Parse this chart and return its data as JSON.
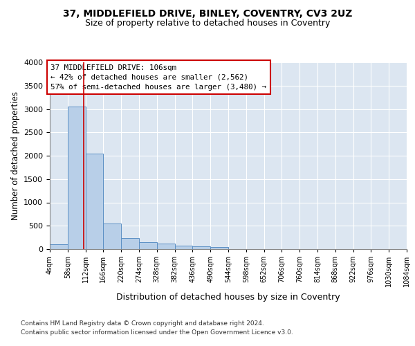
{
  "title1": "37, MIDDLEFIELD DRIVE, BINLEY, COVENTRY, CV3 2UZ",
  "title2": "Size of property relative to detached houses in Coventry",
  "xlabel": "Distribution of detached houses by size in Coventry",
  "ylabel": "Number of detached properties",
  "annotation_line1": "37 MIDDLEFIELD DRIVE: 106sqm",
  "annotation_line2": "← 42% of detached houses are smaller (2,562)",
  "annotation_line3": "57% of semi-detached houses are larger (3,480) →",
  "property_size": 106,
  "bin_edges": [
    4,
    58,
    112,
    166,
    220,
    274,
    328,
    382,
    436,
    490,
    544,
    598,
    652,
    706,
    760,
    814,
    868,
    922,
    976,
    1030,
    1084
  ],
  "bar_heights": [
    100,
    3050,
    2050,
    550,
    230,
    150,
    120,
    80,
    60,
    50,
    0,
    0,
    0,
    0,
    0,
    0,
    0,
    0,
    0,
    0
  ],
  "bar_color": "#b8cfe8",
  "bar_edge_color": "#5b8fc4",
  "bar_edge_width": 0.7,
  "red_line_color": "#cc0000",
  "box_color": "#cc0000",
  "background_color": "#dce6f1",
  "grid_color": "#ffffff",
  "ylim": [
    0,
    4000
  ],
  "yticks": [
    0,
    500,
    1000,
    1500,
    2000,
    2500,
    3000,
    3500,
    4000
  ],
  "footnote1": "Contains HM Land Registry data © Crown copyright and database right 2024.",
  "footnote2": "Contains public sector information licensed under the Open Government Licence v3.0."
}
